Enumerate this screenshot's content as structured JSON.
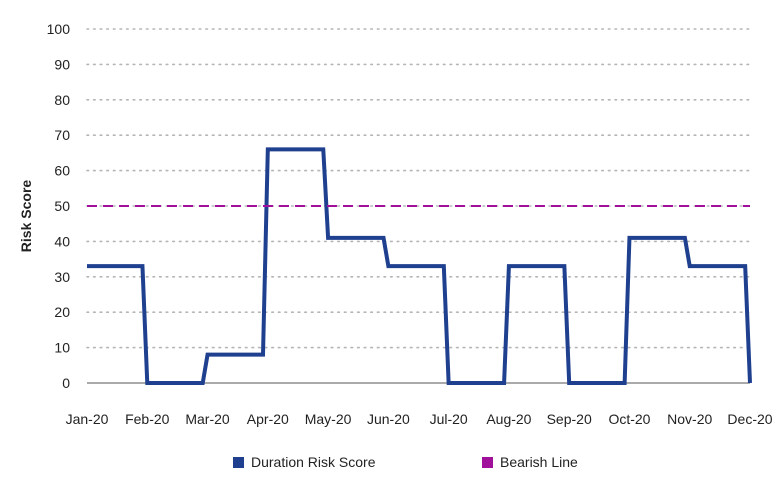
{
  "chart_data": {
    "type": "line",
    "title": "",
    "xlabel": "",
    "ylabel": "Risk Score",
    "ylim": [
      0,
      100
    ],
    "yticks": [
      0,
      10,
      20,
      30,
      40,
      50,
      60,
      70,
      80,
      90,
      100
    ],
    "categories": [
      "Jan-20",
      "Feb-20",
      "Mar-20",
      "Apr-20",
      "May-20",
      "Jun-20",
      "Jul-20",
      "Aug-20",
      "Sep-20",
      "Oct-20",
      "Nov-20",
      "Dec-20"
    ],
    "grid": true,
    "legend_position": "bottom",
    "series": [
      {
        "name": "Duration Risk Score",
        "style": "step",
        "color": "#1f3f8f",
        "values": [
          33,
          0,
          8,
          66,
          41,
          33,
          0,
          33,
          0,
          41,
          33,
          0
        ]
      },
      {
        "name": "Bearish Line",
        "style": "dashed",
        "color": "#a0109a",
        "values": [
          50,
          50,
          50,
          50,
          50,
          50,
          50,
          50,
          50,
          50,
          50,
          50
        ]
      }
    ]
  }
}
